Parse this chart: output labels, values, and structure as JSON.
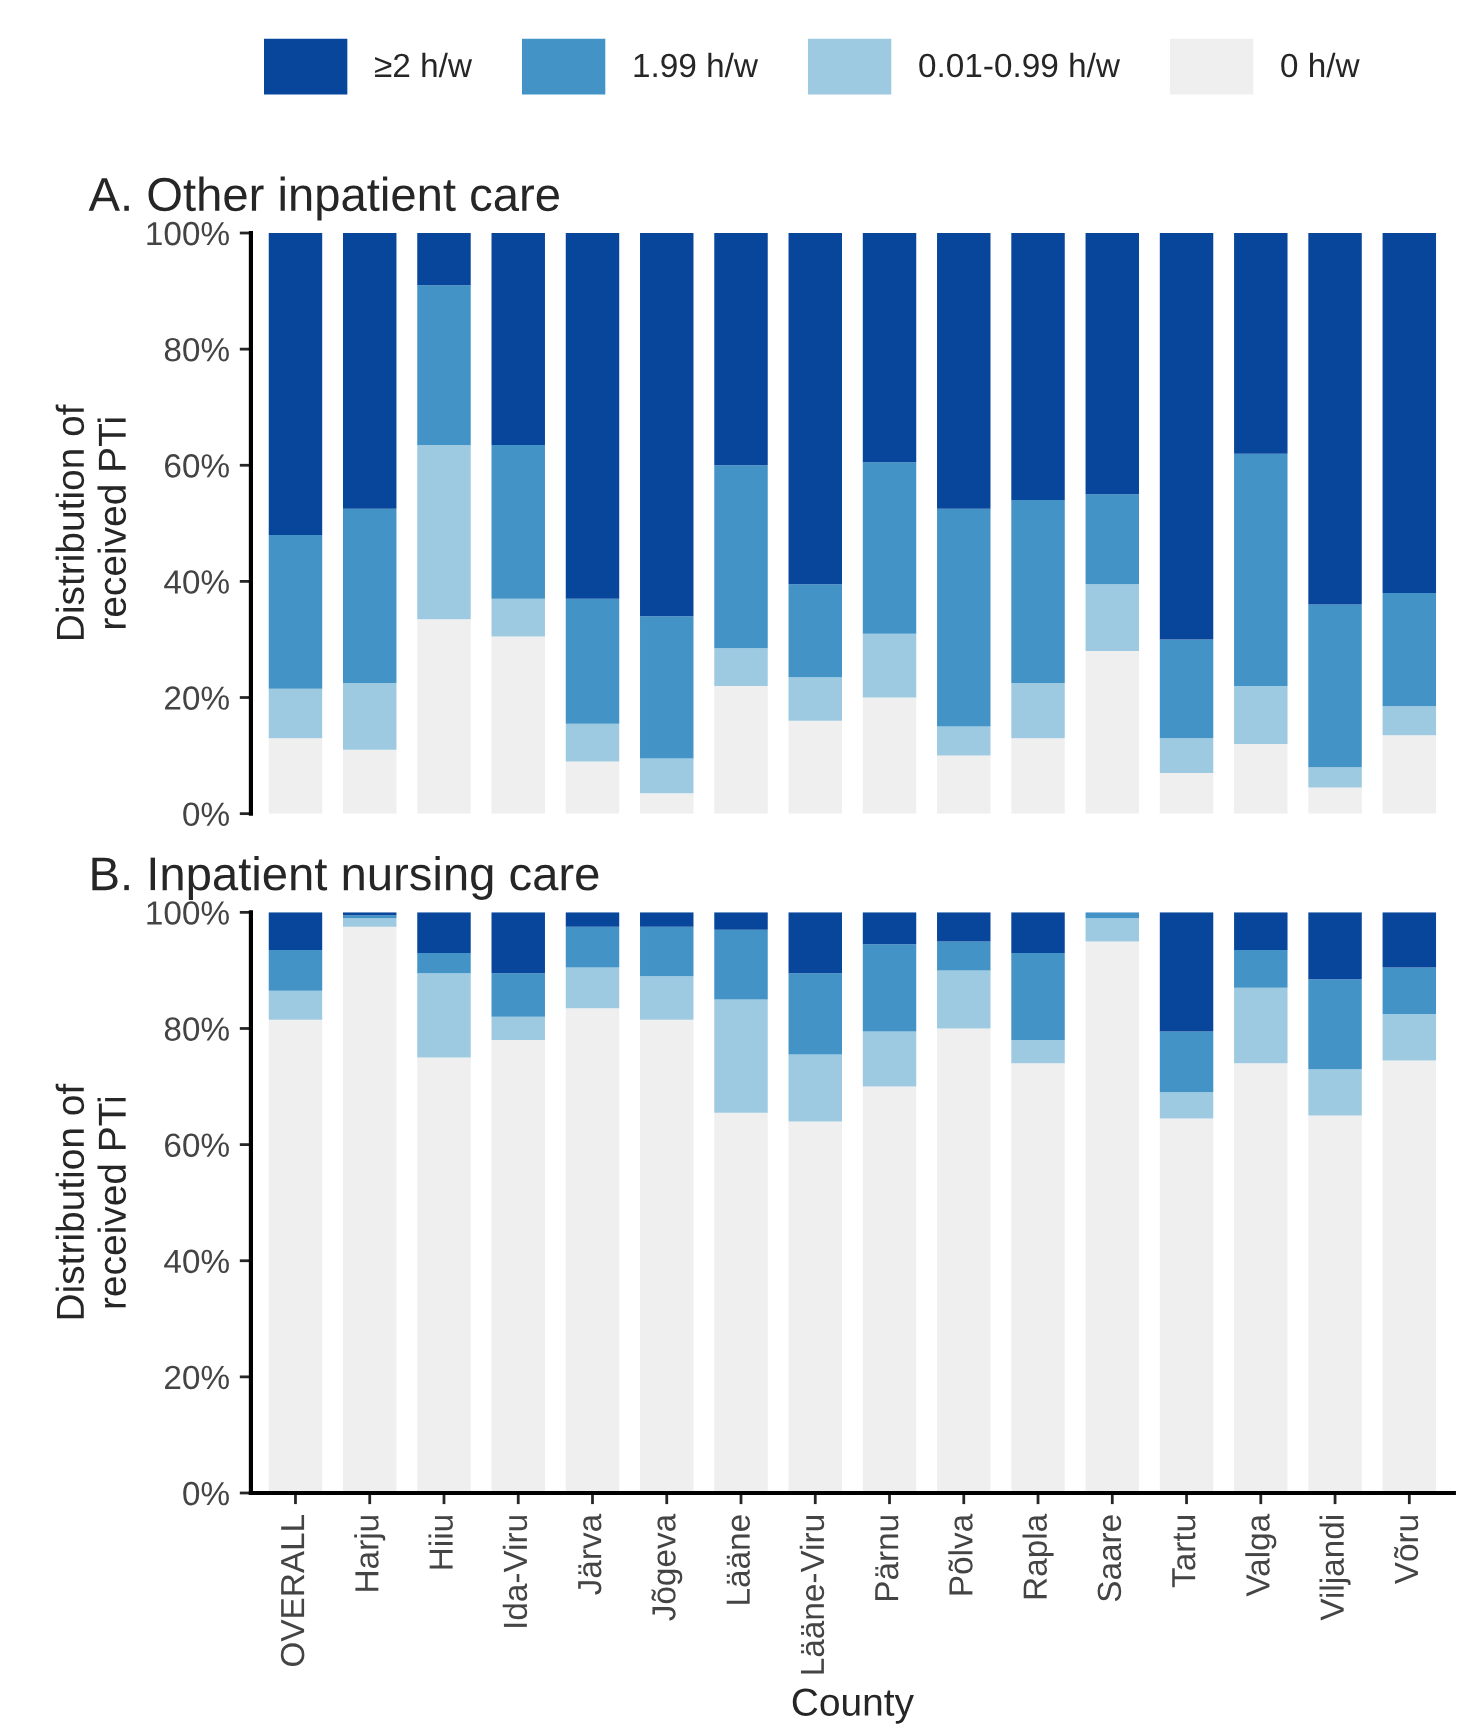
{
  "chart_data": [
    {
      "type": "bar",
      "stacked": true,
      "title": "A. Other inpatient care",
      "ylabel": "Distribution of\nreceived PTi",
      "legend": "top",
      "tick_labels": "y",
      "grid": false,
      "ylim": [
        0,
        100
      ],
      "yticks": [
        {
          "value": 0,
          "label": "0%"
        },
        {
          "value": 20,
          "label": "20%"
        },
        {
          "value": 40,
          "label": "40%"
        },
        {
          "value": 60,
          "label": "60%"
        },
        {
          "value": 80,
          "label": "80%"
        },
        {
          "value": 100,
          "label": "100%"
        }
      ],
      "series": [
        {
          "name": "0 h/w",
          "color": "#efefef",
          "values": [
            13,
            11,
            33.5,
            30.5,
            9,
            3.5,
            22,
            16,
            20,
            10,
            13,
            28,
            7,
            12,
            4.5,
            13.5
          ]
        },
        {
          "name": "0.01-0.99 h/w",
          "color": "#9ecae1",
          "values": [
            8.5,
            11.5,
            30,
            6.5,
            6.5,
            6,
            6.5,
            7.5,
            11,
            5,
            9.5,
            11.5,
            6,
            10,
            3.5,
            5
          ]
        },
        {
          "name": "1.99 h/w",
          "color": "#4393c6",
          "values": [
            26.5,
            30,
            27.5,
            26.5,
            21.5,
            24.5,
            31.5,
            16,
            29.5,
            37.5,
            31.5,
            15.5,
            17,
            40,
            28,
            19.5
          ]
        },
        {
          "name": "≥2 h/w",
          "color": "#08469b",
          "values": [
            52,
            47.5,
            9,
            36.5,
            63,
            66,
            40,
            60.5,
            39.5,
            47.5,
            46,
            45,
            70,
            38,
            64,
            62
          ]
        }
      ]
    },
    {
      "type": "bar",
      "stacked": true,
      "title": "B. Inpatient nursing care",
      "ylabel": "Distribution of\nreceived PTi",
      "xlabel": "County",
      "grid": false,
      "categories": [
        "OVERALL",
        "Harju",
        "Hiiu",
        "Ida-Viru",
        "Järva",
        "Jõgeva",
        "Lääne",
        "Lääne-Viru",
        "Pärnu",
        "Põlva",
        "Rapla",
        "Saare",
        "Tartu",
        "Valga",
        "Viljandi",
        "Võru"
      ],
      "ylim": [
        0,
        100
      ],
      "yticks": [
        {
          "value": 0,
          "label": "0%"
        },
        {
          "value": 20,
          "label": "20%"
        },
        {
          "value": 40,
          "label": "40%"
        },
        {
          "value": 60,
          "label": "60%"
        },
        {
          "value": 80,
          "label": "80%"
        },
        {
          "value": 100,
          "label": "100%"
        }
      ],
      "series": [
        {
          "color": "#efefef",
          "values": [
            81.5,
            97.5,
            75,
            78,
            83.5,
            81.5,
            65.5,
            64,
            70,
            80,
            74,
            95,
            64.5,
            74,
            65,
            74.5
          ]
        },
        {
          "color": "#9ecae1",
          "values": [
            5,
            1.5,
            14.5,
            4,
            7,
            7.5,
            19.5,
            11.5,
            9.5,
            10,
            4,
            4,
            4.5,
            13,
            8,
            8
          ]
        },
        {
          "color": "#4393c6",
          "values": [
            7,
            0.5,
            3.5,
            7.5,
            7,
            8.5,
            12,
            14,
            15,
            5,
            15,
            1,
            10.5,
            6.5,
            15.5,
            8
          ]
        },
        {
          "color": "#08469b",
          "values": [
            6.5,
            0.5,
            7,
            10.5,
            2.5,
            2.5,
            3,
            10.5,
            5.5,
            5,
            7,
            0,
            20.5,
            6.5,
            11.5,
            9.5
          ]
        }
      ]
    }
  ]
}
